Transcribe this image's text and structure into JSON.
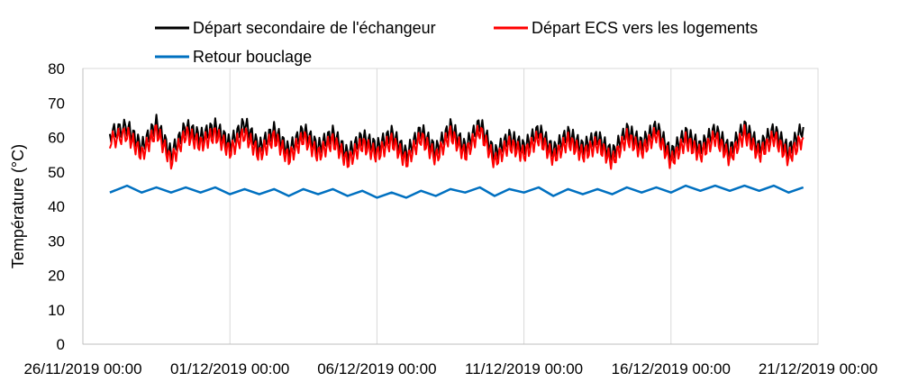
{
  "chart_data": {
    "type": "line",
    "title": "",
    "xlabel": "",
    "ylabel": "Température (°C)",
    "ylim": [
      0,
      80
    ],
    "yticks": [
      "0",
      "10",
      "20",
      "30",
      "40",
      "50",
      "60",
      "70",
      "80"
    ],
    "xlim": [
      "2019-11-26 00:00",
      "2019-12-21 00:00"
    ],
    "xticks": [
      "26/11/2019 00:00",
      "01/12/2019 00:00",
      "06/12/2019 00:00",
      "11/12/2019 00:00",
      "16/12/2019 00:00",
      "21/12/2019 00:00"
    ],
    "grid": "vertical",
    "legend_position": "top",
    "series": [
      {
        "name": "Départ secondaire de l'échangeur",
        "color": "#000000",
        "x": [
          "2019-11-26 22:00",
          "2019-11-27 12:00",
          "2019-11-28 00:00",
          "2019-11-28 12:00",
          "2019-11-29 00:00",
          "2019-11-29 12:00",
          "2019-11-30 00:00",
          "2019-11-30 12:00",
          "2019-12-01 00:00",
          "2019-12-01 12:00",
          "2019-12-02 00:00",
          "2019-12-02 12:00",
          "2019-12-03 00:00",
          "2019-12-03 12:00",
          "2019-12-04 00:00",
          "2019-12-04 12:00",
          "2019-12-05 00:00",
          "2019-12-05 12:00",
          "2019-12-06 00:00",
          "2019-12-06 12:00",
          "2019-12-07 00:00",
          "2019-12-07 12:00",
          "2019-12-08 00:00",
          "2019-12-08 12:00",
          "2019-12-09 00:00",
          "2019-12-09 12:00",
          "2019-12-10 00:00",
          "2019-12-10 12:00",
          "2019-12-11 00:00",
          "2019-12-11 12:00",
          "2019-12-12 00:00",
          "2019-12-12 12:00",
          "2019-12-13 00:00",
          "2019-12-13 12:00",
          "2019-12-14 00:00",
          "2019-12-14 12:00",
          "2019-12-15 00:00",
          "2019-12-15 12:00",
          "2019-12-16 00:00",
          "2019-12-16 12:00",
          "2019-12-17 00:00",
          "2019-12-17 12:00",
          "2019-12-18 00:00",
          "2019-12-18 12:00",
          "2019-12-19 00:00",
          "2019-12-19 12:00",
          "2019-12-20 00:00",
          "2019-12-20 12:00"
        ],
        "values": [
          61,
          63,
          57,
          64,
          55,
          63,
          60,
          63,
          58,
          64,
          57,
          62,
          56,
          62,
          57,
          61,
          55,
          60,
          57,
          61,
          55,
          62,
          56,
          63,
          57,
          64,
          55,
          60,
          57,
          62,
          56,
          61,
          57,
          60,
          55,
          62,
          58,
          63,
          55,
          61,
          57,
          62,
          56,
          63,
          57,
          62,
          56,
          63
        ]
      },
      {
        "name": "Départ ECS vers les logements",
        "color": "#ff0000",
        "x": [
          "2019-11-26 22:00",
          "2019-11-27 12:00",
          "2019-11-28 00:00",
          "2019-11-28 12:00",
          "2019-11-29 00:00",
          "2019-11-29 12:00",
          "2019-11-30 00:00",
          "2019-11-30 12:00",
          "2019-12-01 00:00",
          "2019-12-01 12:00",
          "2019-12-02 00:00",
          "2019-12-02 12:00",
          "2019-12-03 00:00",
          "2019-12-03 12:00",
          "2019-12-04 00:00",
          "2019-12-04 12:00",
          "2019-12-05 00:00",
          "2019-12-05 12:00",
          "2019-12-06 00:00",
          "2019-12-06 12:00",
          "2019-12-07 00:00",
          "2019-12-07 12:00",
          "2019-12-08 00:00",
          "2019-12-08 12:00",
          "2019-12-09 00:00",
          "2019-12-09 12:00",
          "2019-12-10 00:00",
          "2019-12-10 12:00",
          "2019-12-11 00:00",
          "2019-12-11 12:00",
          "2019-12-12 00:00",
          "2019-12-12 12:00",
          "2019-12-13 00:00",
          "2019-12-13 12:00",
          "2019-12-14 00:00",
          "2019-12-14 12:00",
          "2019-12-15 00:00",
          "2019-12-15 12:00",
          "2019-12-16 00:00",
          "2019-12-16 12:00",
          "2019-12-17 00:00",
          "2019-12-17 12:00",
          "2019-12-18 00:00",
          "2019-12-18 12:00",
          "2019-12-19 00:00",
          "2019-12-19 12:00",
          "2019-12-20 00:00",
          "2019-12-20 12:00"
        ],
        "values": [
          59,
          61,
          55,
          62,
          53,
          61,
          58,
          61,
          56,
          61,
          55,
          60,
          54,
          60,
          55,
          59,
          53,
          58,
          55,
          59,
          53,
          60,
          54,
          61,
          55,
          62,
          53,
          58,
          55,
          60,
          54,
          59,
          55,
          58,
          53,
          60,
          56,
          61,
          53,
          59,
          55,
          60,
          54,
          61,
          55,
          60,
          54,
          60
        ]
      },
      {
        "name": "Retour bouclage",
        "color": "#0070c0",
        "x": [
          "2019-11-26 22:00",
          "2019-11-27 12:00",
          "2019-11-28 00:00",
          "2019-11-28 12:00",
          "2019-11-29 00:00",
          "2019-11-29 12:00",
          "2019-11-30 00:00",
          "2019-11-30 12:00",
          "2019-12-01 00:00",
          "2019-12-01 12:00",
          "2019-12-02 00:00",
          "2019-12-02 12:00",
          "2019-12-03 00:00",
          "2019-12-03 12:00",
          "2019-12-04 00:00",
          "2019-12-04 12:00",
          "2019-12-05 00:00",
          "2019-12-05 12:00",
          "2019-12-06 00:00",
          "2019-12-06 12:00",
          "2019-12-07 00:00",
          "2019-12-07 12:00",
          "2019-12-08 00:00",
          "2019-12-08 12:00",
          "2019-12-09 00:00",
          "2019-12-09 12:00",
          "2019-12-10 00:00",
          "2019-12-10 12:00",
          "2019-12-11 00:00",
          "2019-12-11 12:00",
          "2019-12-12 00:00",
          "2019-12-12 12:00",
          "2019-12-13 00:00",
          "2019-12-13 12:00",
          "2019-12-14 00:00",
          "2019-12-14 12:00",
          "2019-12-15 00:00",
          "2019-12-15 12:00",
          "2019-12-16 00:00",
          "2019-12-16 12:00",
          "2019-12-17 00:00",
          "2019-12-17 12:00",
          "2019-12-18 00:00",
          "2019-12-18 12:00",
          "2019-12-19 00:00",
          "2019-12-19 12:00",
          "2019-12-20 00:00",
          "2019-12-20 12:00"
        ],
        "values": [
          44,
          46,
          44,
          45.5,
          44,
          45.5,
          44,
          45.5,
          43.5,
          45,
          43.5,
          45,
          43,
          45,
          43.5,
          45,
          43,
          44.5,
          42.5,
          44,
          42.5,
          44.5,
          43,
          45,
          44,
          45.5,
          43,
          45,
          44,
          45.5,
          43,
          45,
          43.5,
          45,
          43.5,
          45.5,
          44,
          45.5,
          44,
          46,
          44.5,
          46,
          44.5,
          46,
          44.5,
          46,
          44,
          45.5
        ]
      }
    ]
  }
}
